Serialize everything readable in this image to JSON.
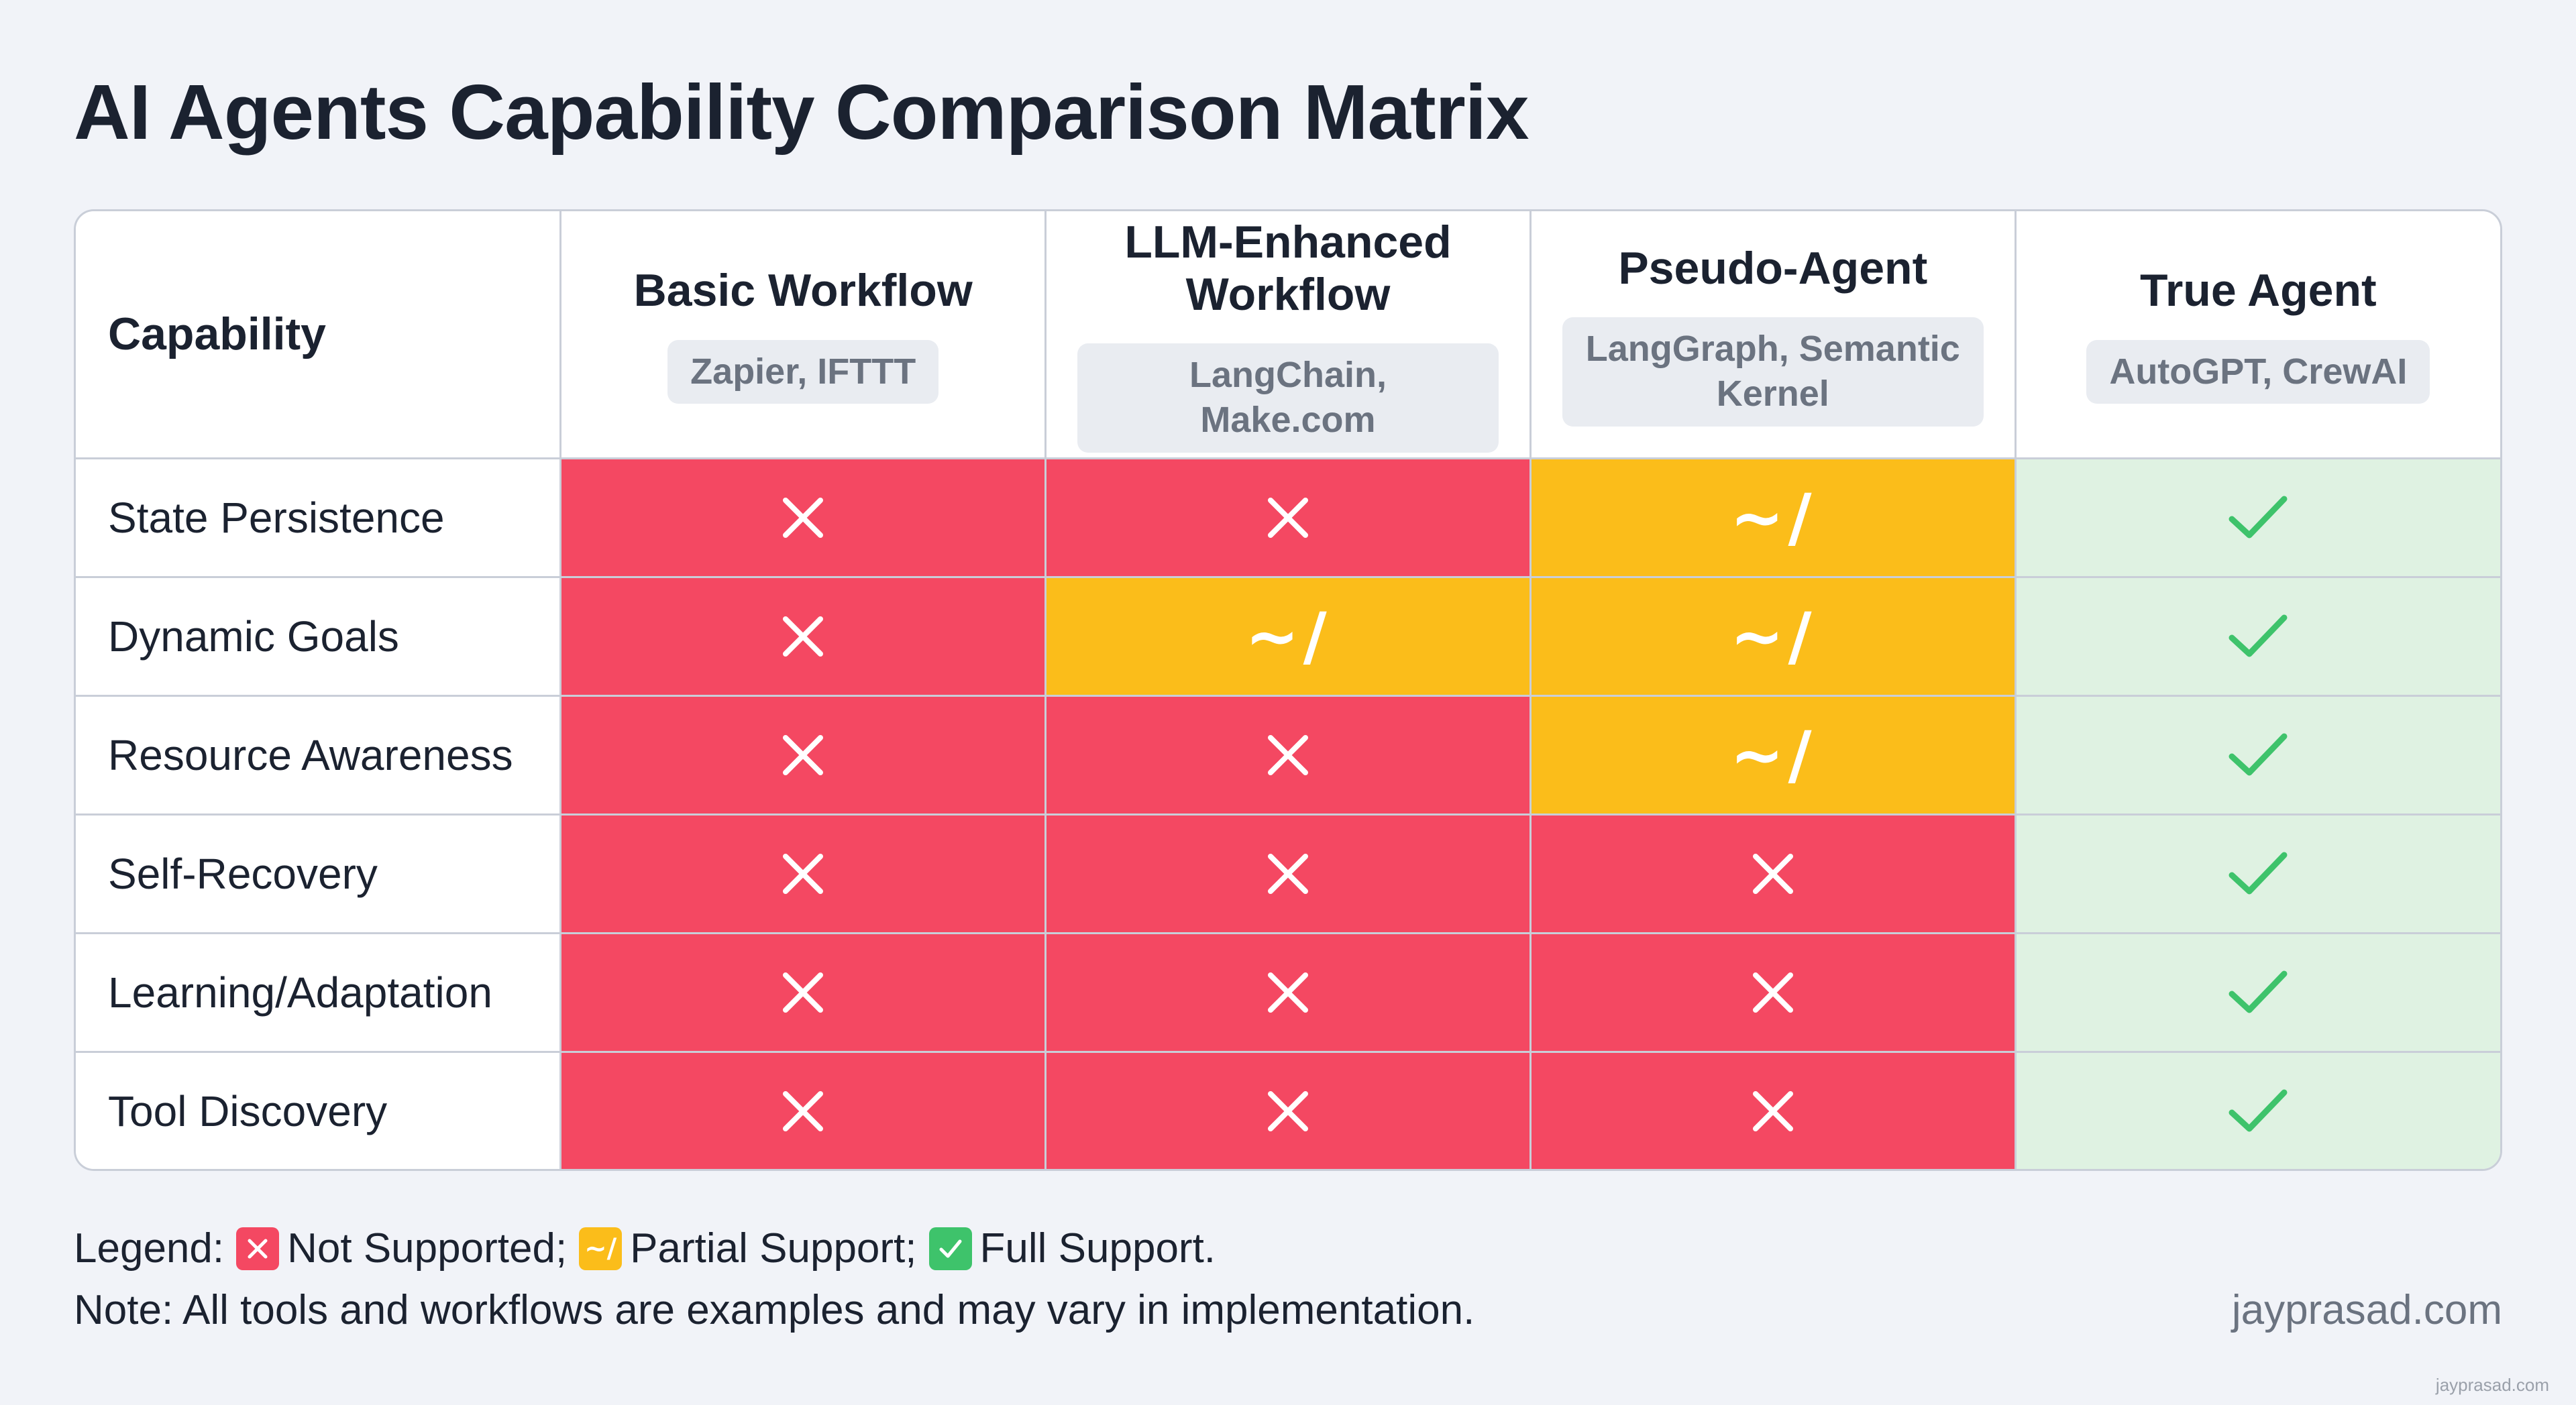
{
  "title": "AI Agents Capability Comparison Matrix",
  "matrix": {
    "corner_label": "Capability",
    "columns": [
      {
        "name": "Basic Workflow",
        "examples": "Zapier, IFTTT"
      },
      {
        "name": "LLM-Enhanced Workflow",
        "examples": "LangChain, Make.com"
      },
      {
        "name": "Pseudo-Agent",
        "examples": "LangGraph, Semantic Kernel"
      },
      {
        "name": "True Agent",
        "examples": "AutoGPT, CrewAI"
      }
    ],
    "rows": [
      {
        "label": "State Persistence",
        "cells": [
          "no",
          "no",
          "partial",
          "full"
        ]
      },
      {
        "label": "Dynamic Goals",
        "cells": [
          "no",
          "partial",
          "partial",
          "full"
        ]
      },
      {
        "label": "Resource Awareness",
        "cells": [
          "no",
          "no",
          "partial",
          "full"
        ]
      },
      {
        "label": "Self-Recovery",
        "cells": [
          "no",
          "no",
          "no",
          "full"
        ]
      },
      {
        "label": "Learning/Adaptation",
        "cells": [
          "no",
          "no",
          "no",
          "full"
        ]
      },
      {
        "label": "Tool Discovery",
        "cells": [
          "no",
          "no",
          "no",
          "full"
        ]
      }
    ],
    "symbols": {
      "partial": "~/"
    },
    "icons": {
      "no": "x-icon",
      "partial": "tilde-slash-icon",
      "full": "check-icon"
    },
    "colors": {
      "no": "#f44862",
      "partial": "#fbbd1a",
      "full_bg": "#dff2e2",
      "check": "#3ec36b"
    }
  },
  "legend": {
    "prefix": "Legend:",
    "items": [
      {
        "status": "no",
        "label": "Not Supported;"
      },
      {
        "status": "partial",
        "label": "Partial Support;"
      },
      {
        "status": "full",
        "label": "Full Support."
      }
    ]
  },
  "note": "Note: All tools and workflows are examples and may vary in implementation.",
  "site": "jayprasad.com",
  "watermark": "jayprasad.com"
}
